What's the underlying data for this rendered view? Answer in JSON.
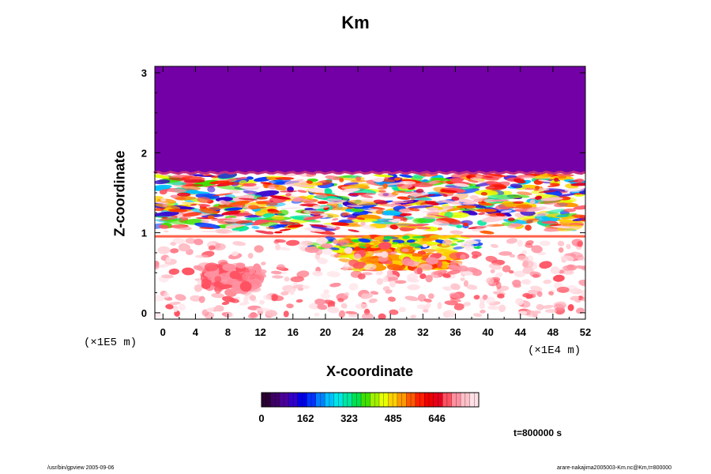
{
  "title": "Km",
  "xlabel": "X-coordinate",
  "ylabel": "Z-coordinate",
  "x_exponent": "(×1E4 m)",
  "y_exponent": "(×1E5 m)",
  "time_label": "t=800000 s",
  "footer_left": "/usr/bin/gpview 2005-09-06",
  "footer_right": "arare-nakajima2005003-Km.nc@Km,t=800000",
  "colors": {
    "upper_region": "#7300a6",
    "background": "#ffffff"
  },
  "chart_data": {
    "type": "heatmap",
    "title": "Km",
    "xlabel": "X-coordinate",
    "ylabel": "Z-coordinate",
    "xlim": [
      -1,
      52
    ],
    "ylim": [
      -0.08,
      3.08
    ],
    "x_ticks": [
      0,
      4,
      8,
      12,
      16,
      20,
      24,
      28,
      32,
      36,
      40,
      44,
      48,
      52
    ],
    "y_ticks": [
      0,
      1,
      2,
      3
    ],
    "colorbar": {
      "min": 0,
      "max": 800,
      "tick_values": [
        0,
        162,
        323,
        485,
        646
      ],
      "colors": [
        "#2a0033",
        "#3d0066",
        "#4a0099",
        "#3300cc",
        "#0000e6",
        "#0033ff",
        "#0080ff",
        "#00c0ff",
        "#00e6e6",
        "#00e6a0",
        "#00e050",
        "#40e000",
        "#a0f000",
        "#e6ff00",
        "#ffd000",
        "#ff9900",
        "#ff5a00",
        "#ff2000",
        "#f00000",
        "#e6001e",
        "#ff5060",
        "#ff90a0",
        "#ffc0c8",
        "#ffe0e6"
      ]
    },
    "regions": [
      {
        "name": "saturated upper layer",
        "z_range": [
          1.75,
          3.08
        ],
        "value": 0
      }
    ]
  }
}
